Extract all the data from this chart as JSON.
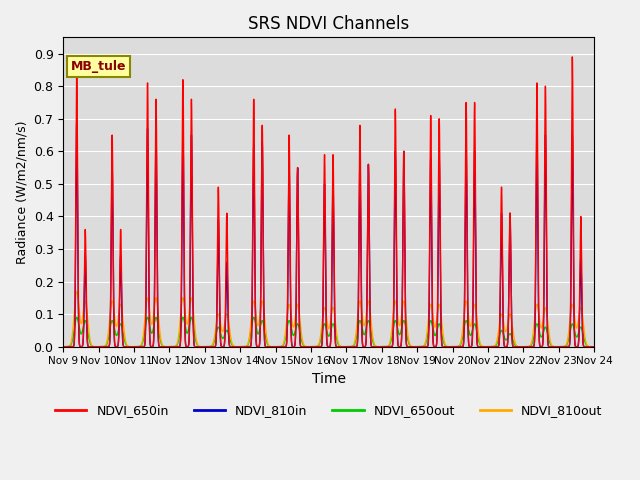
{
  "title": "SRS NDVI Channels",
  "xlabel": "Time",
  "ylabel": "Radiance (W/m2/nm/s)",
  "ylim": [
    0.0,
    0.95
  ],
  "annotation_text": "MB_tule",
  "legend": [
    "NDVI_650in",
    "NDVI_810in",
    "NDVI_650out",
    "NDVI_810out"
  ],
  "colors": [
    "#ff0000",
    "#0000cc",
    "#00cc00",
    "#ffaa00"
  ],
  "axes_facecolor": "#dcdcdc",
  "fig_facecolor": "#f0f0f0",
  "day_peaks_650in": [
    0.84,
    0.65,
    0.81,
    0.82,
    0.49,
    0.76,
    0.65,
    0.59,
    0.68,
    0.73,
    0.71,
    0.75,
    0.49,
    0.81,
    0.89
  ],
  "day_peaks2_650in": [
    0.36,
    0.36,
    0.76,
    0.76,
    0.41,
    0.68,
    0.55,
    0.59,
    0.56,
    0.6,
    0.7,
    0.75,
    0.41,
    0.8,
    0.4
  ],
  "day_peaks_810in": [
    0.69,
    0.56,
    0.67,
    0.66,
    0.39,
    0.62,
    0.55,
    0.5,
    0.56,
    0.6,
    0.58,
    0.6,
    0.41,
    0.65,
    0.65
  ],
  "day_peaks2_810in": [
    0.28,
    0.28,
    0.65,
    0.65,
    0.26,
    0.63,
    0.55,
    0.5,
    0.56,
    0.6,
    0.58,
    0.6,
    0.41,
    0.65,
    0.27
  ],
  "day_peaks_650out": [
    0.09,
    0.08,
    0.09,
    0.09,
    0.06,
    0.09,
    0.08,
    0.07,
    0.08,
    0.08,
    0.08,
    0.08,
    0.05,
    0.07,
    0.07
  ],
  "day_peaks2_650out": [
    0.08,
    0.07,
    0.09,
    0.09,
    0.05,
    0.08,
    0.07,
    0.07,
    0.08,
    0.08,
    0.07,
    0.07,
    0.04,
    0.06,
    0.06
  ],
  "day_peaks_810out": [
    0.17,
    0.14,
    0.15,
    0.15,
    0.1,
    0.14,
    0.13,
    0.12,
    0.14,
    0.14,
    0.13,
    0.14,
    0.1,
    0.13,
    0.13
  ],
  "day_peaks2_810out": [
    0.14,
    0.13,
    0.15,
    0.15,
    0.1,
    0.14,
    0.13,
    0.12,
    0.14,
    0.14,
    0.13,
    0.13,
    0.1,
    0.12,
    0.12
  ],
  "n_days": 15,
  "tick_labels": [
    "Nov 9",
    "Nov 10",
    "Nov 11",
    "Nov 12",
    "Nov 13",
    "Nov 14",
    "Nov 15",
    "Nov 16",
    "Nov 17",
    "Nov 18",
    "Nov 19",
    "Nov 20",
    "Nov 21",
    "Nov 22",
    "Nov 23",
    "Nov 24"
  ]
}
